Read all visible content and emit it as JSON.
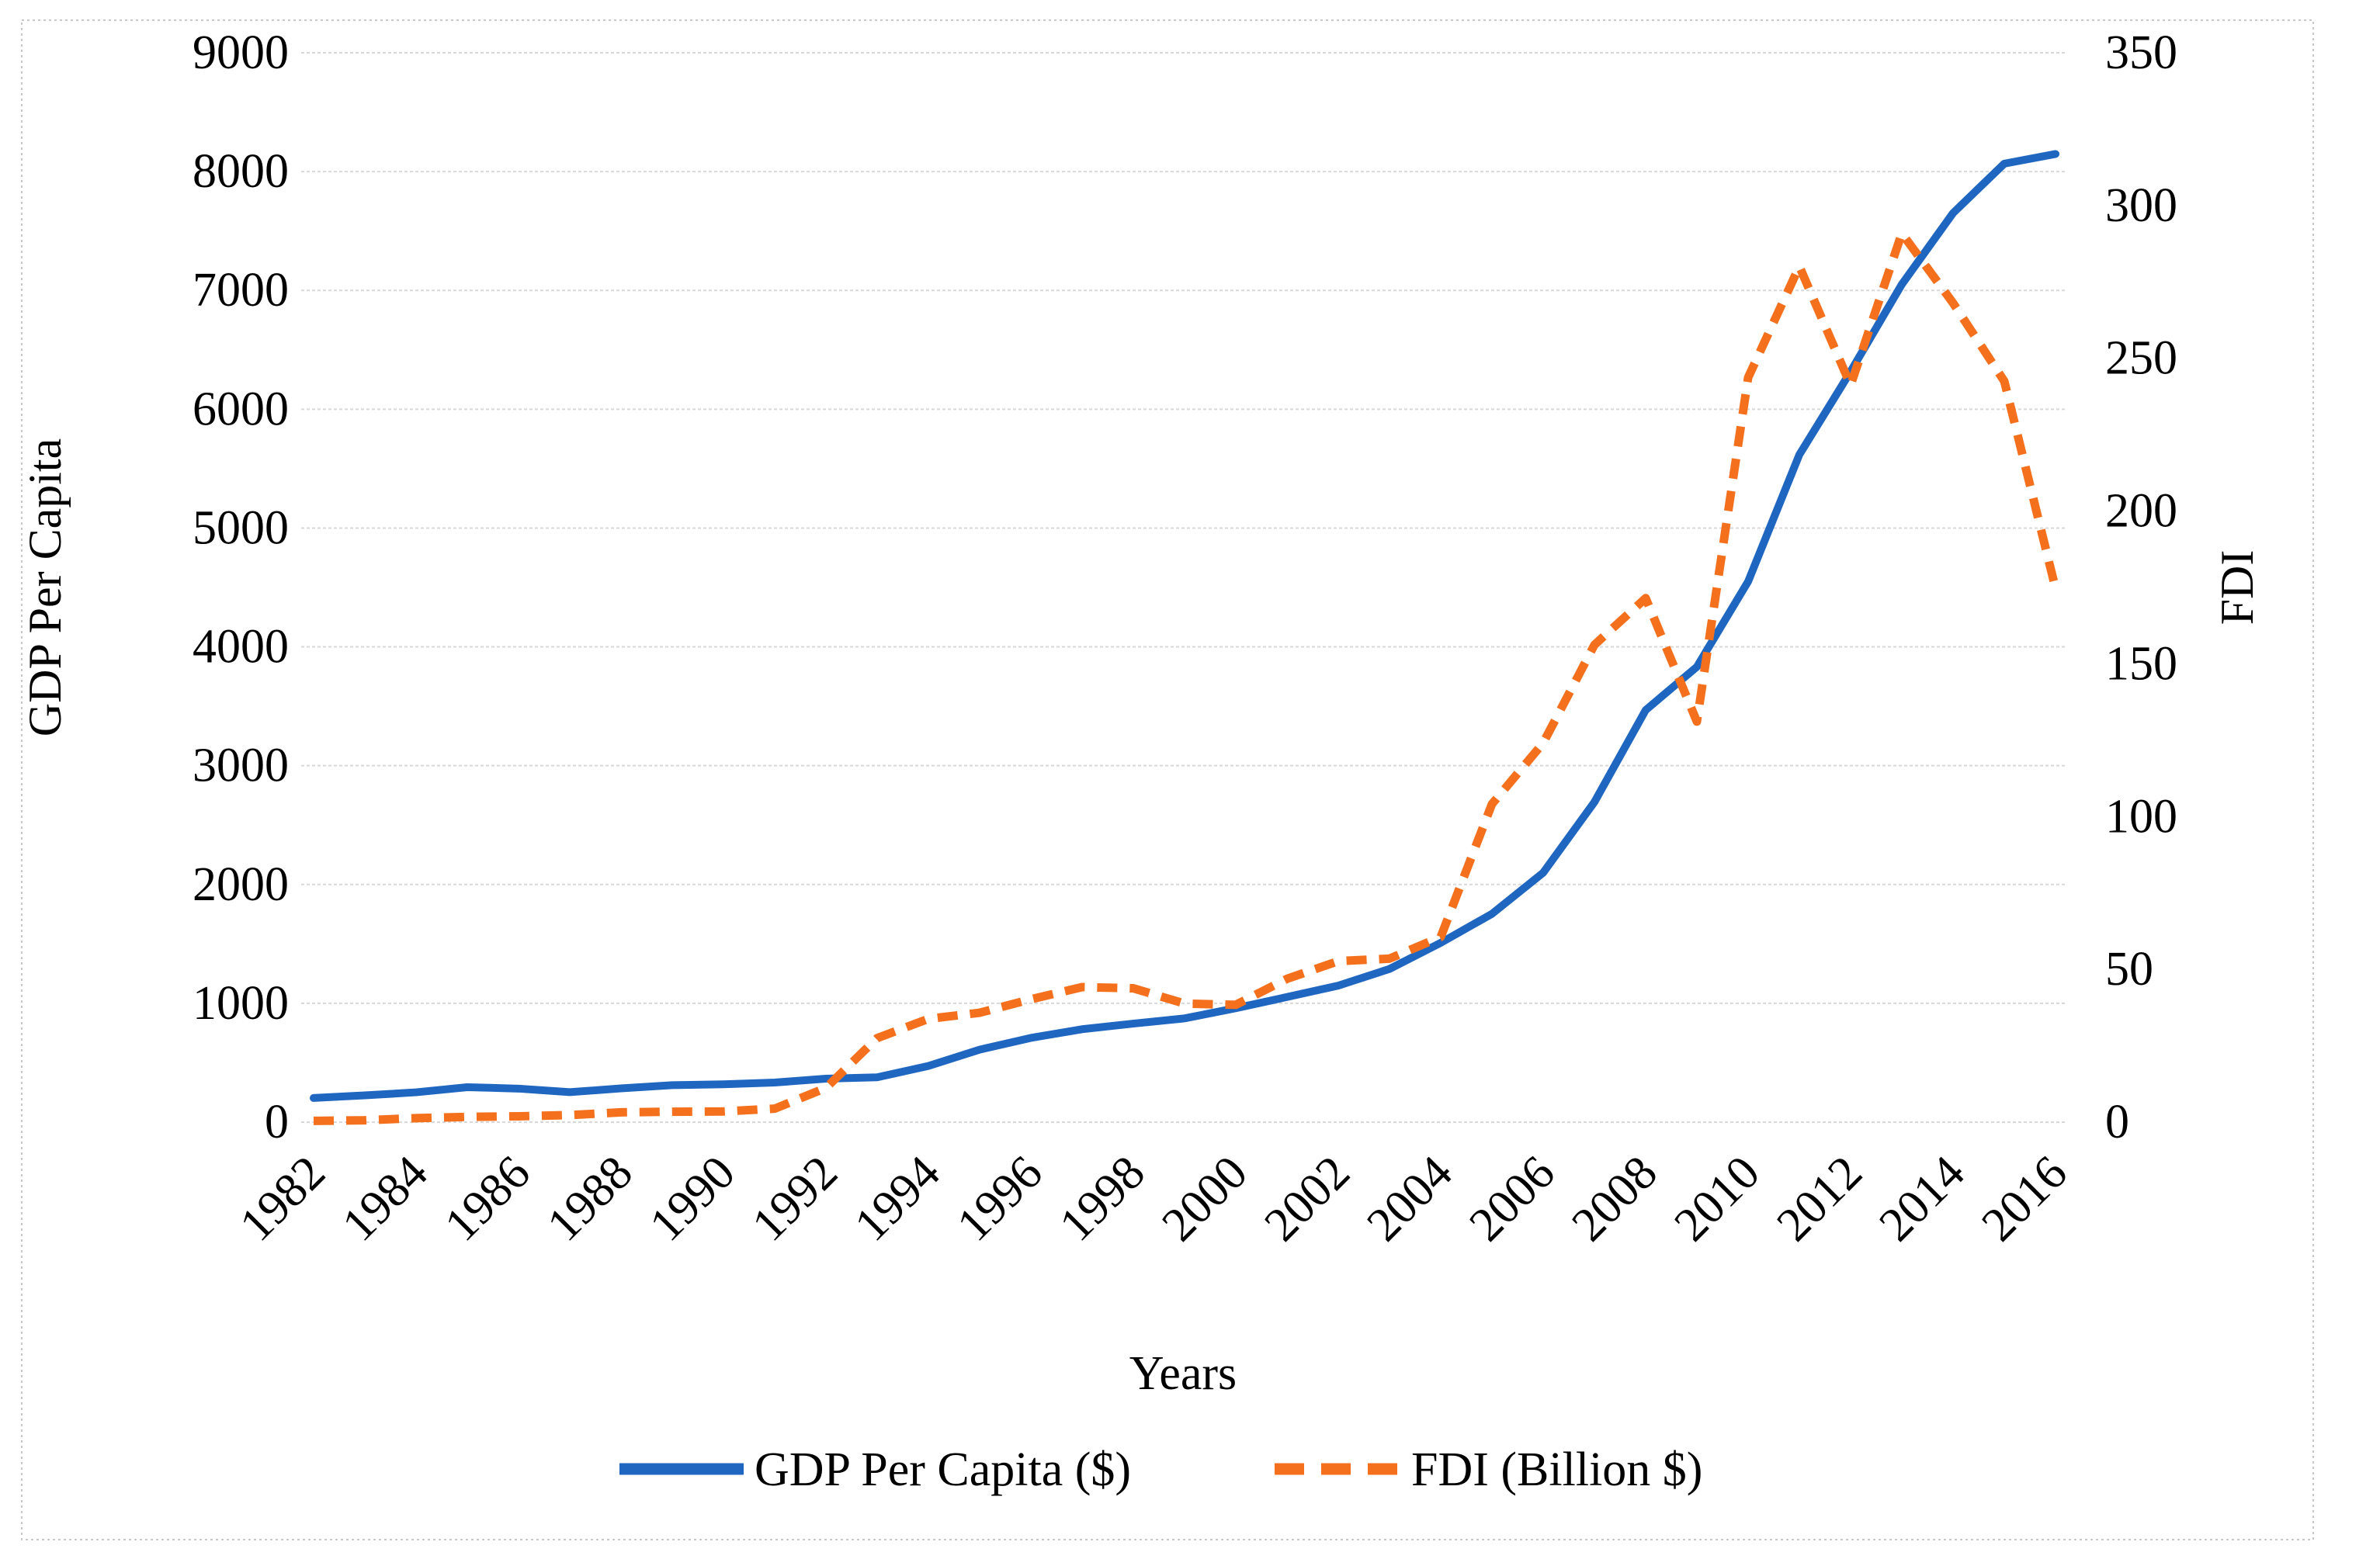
{
  "figure": {
    "background": "#ffffff",
    "border_color": "#c9c9c9"
  },
  "chart_data": {
    "type": "line",
    "title": "",
    "xlabel": "Years",
    "x": [
      1982,
      1983,
      1984,
      1985,
      1986,
      1987,
      1988,
      1989,
      1990,
      1991,
      1992,
      1993,
      1994,
      1995,
      1996,
      1997,
      1998,
      1999,
      2000,
      2001,
      2002,
      2003,
      2004,
      2005,
      2006,
      2007,
      2008,
      2009,
      2010,
      2011,
      2012,
      2013,
      2014,
      2015,
      2016
    ],
    "x_tick_labels": [
      "1982",
      "1984",
      "1986",
      "1988",
      "1990",
      "1992",
      "1994",
      "1996",
      "1998",
      "2000",
      "2002",
      "2004",
      "2006",
      "2008",
      "2010",
      "2012",
      "2014",
      "2016"
    ],
    "left_axis": {
      "label": "GDP Per Capita",
      "min": 0,
      "max": 9000,
      "step": 1000,
      "tick_labels": [
        "0",
        "1000",
        "2000",
        "3000",
        "4000",
        "5000",
        "6000",
        "7000",
        "8000",
        "9000"
      ]
    },
    "right_axis": {
      "label": "FDI",
      "min": 0,
      "max": 350,
      "step": 50,
      "tick_labels": [
        "0",
        "50",
        "100",
        "150",
        "200",
        "250",
        "300",
        "350"
      ]
    },
    "series": [
      {
        "name": "GDP Per Capita ($)",
        "axis": "left",
        "color": "#1f66c1",
        "style": "solid",
        "values": [
          203,
          225,
          251,
          294,
          282,
          252,
          284,
          311,
          318,
          333,
          366,
          377,
          473,
          610,
          709,
          782,
          829,
          873,
          959,
          1053,
          1149,
          1289,
          1509,
          1753,
          2099,
          2694,
          3468,
          3832,
          4550,
          5618,
          6317,
          7051,
          7651,
          8067,
          8148
        ]
      },
      {
        "name": "FDI (Billion $)",
        "axis": "right",
        "color": "#f4701d",
        "style": "dashed",
        "values": [
          0.4,
          0.6,
          1.3,
          1.7,
          1.9,
          2.3,
          3.2,
          3.4,
          3.5,
          4.4,
          11.2,
          27.5,
          33.8,
          35.8,
          40.2,
          44.2,
          43.8,
          38.8,
          38.4,
          46.9,
          52.7,
          53.5,
          60.6,
          104.1,
          124.1,
          156.2,
          171.5,
          131.1,
          243.7,
          280.1,
          241.2,
          290.9,
          268.1,
          242.5,
          174.7
        ]
      }
    ],
    "legend": {
      "position": "bottom",
      "items": [
        "GDP Per Capita ($)",
        "FDI (Billion $)"
      ]
    },
    "grid": "horizontal",
    "gridline_color": "#d8d8d8"
  }
}
